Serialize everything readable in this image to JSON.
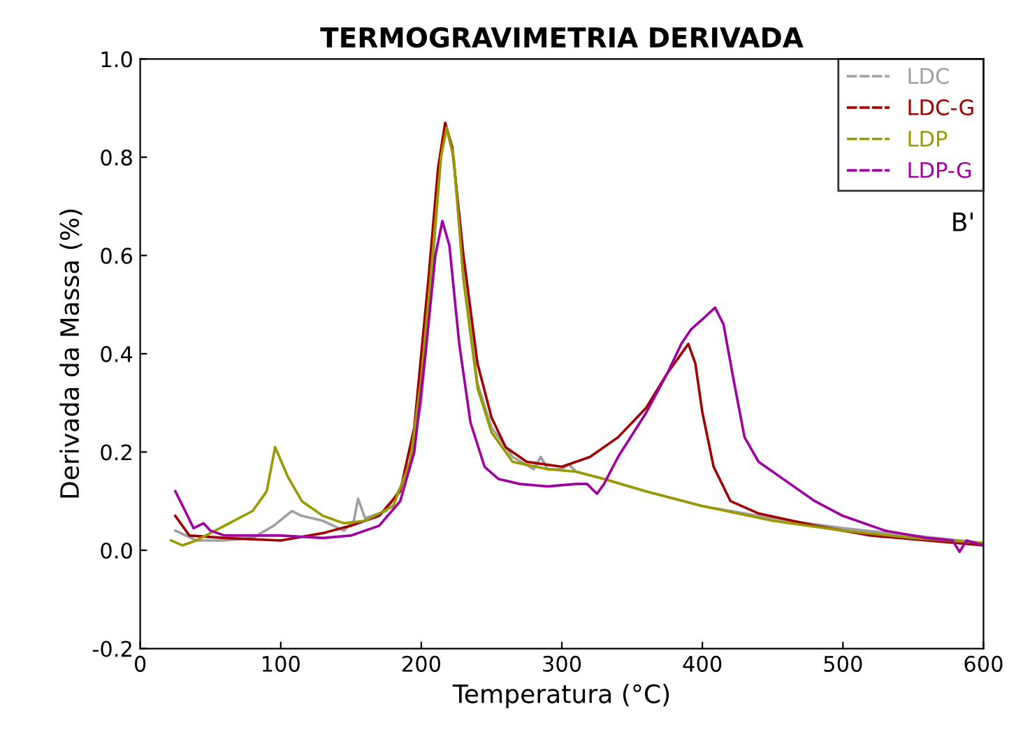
{
  "chart_data": {
    "type": "line",
    "title": "TERMOGRAVIMETRIA DERIVADA",
    "xlabel": "Temperatura (°C)",
    "ylabel": "Derivada da Massa (%)",
    "annotations": [
      "B'"
    ],
    "xlim": [
      0,
      600
    ],
    "xticks": [
      0,
      100,
      200,
      300,
      400,
      500,
      600
    ],
    "ylim": [
      -0.2,
      1.0
    ],
    "yticks": [
      {
        "value": -0.2,
        "label": "-0.2"
      },
      {
        "value": 0.0,
        "label": "0.0"
      },
      {
        "value": 0.2,
        "label": "0.2"
      },
      {
        "value": 0.4,
        "label": "0.4"
      },
      {
        "value": 0.6,
        "label": "0.6"
      },
      {
        "value": 0.8,
        "label": "0.8"
      },
      {
        "value": 1.0,
        "label": "1.0"
      }
    ],
    "grid": false,
    "legend": "top right",
    "marker": "none",
    "line_style": "solid",
    "series": [
      {
        "name": "LDC",
        "color": "#a0a0a0",
        "x": [
          25,
          40,
          60,
          80,
          95,
          108,
          115,
          130,
          145,
          152,
          155,
          160,
          175,
          190,
          200,
          208,
          214,
          218,
          223,
          230,
          240,
          250,
          265,
          280,
          285,
          290,
          300,
          305,
          310,
          330,
          360,
          400,
          450,
          500,
          550,
          600
        ],
        "values": [
          0.04,
          0.02,
          0.02,
          0.025,
          0.05,
          0.08,
          0.07,
          0.06,
          0.04,
          0.06,
          0.105,
          0.065,
          0.08,
          0.15,
          0.3,
          0.58,
          0.8,
          0.86,
          0.8,
          0.56,
          0.34,
          0.25,
          0.19,
          0.165,
          0.19,
          0.165,
          0.165,
          0.175,
          0.16,
          0.145,
          0.12,
          0.09,
          0.065,
          0.045,
          0.03,
          0.015
        ]
      },
      {
        "name": "LDC-G",
        "color": "#a00000",
        "x": [
          25,
          35,
          60,
          100,
          130,
          150,
          170,
          185,
          195,
          205,
          212,
          217,
          222,
          230,
          240,
          250,
          260,
          275,
          300,
          320,
          340,
          360,
          375,
          390,
          395,
          400,
          408,
          420,
          440,
          480,
          520,
          560,
          600
        ],
        "values": [
          0.07,
          0.03,
          0.025,
          0.02,
          0.035,
          0.05,
          0.07,
          0.12,
          0.25,
          0.55,
          0.78,
          0.87,
          0.82,
          0.6,
          0.38,
          0.27,
          0.21,
          0.18,
          0.17,
          0.19,
          0.23,
          0.29,
          0.36,
          0.42,
          0.38,
          0.28,
          0.17,
          0.1,
          0.075,
          0.05,
          0.03,
          0.02,
          0.01
        ]
      },
      {
        "name": "LDP",
        "color": "#9a9a00",
        "x": [
          22,
          30,
          40,
          60,
          80,
          90,
          96,
          105,
          115,
          130,
          145,
          160,
          180,
          192,
          200,
          208,
          214,
          218,
          223,
          230,
          240,
          250,
          265,
          290,
          310,
          330,
          360,
          400,
          450,
          500,
          550,
          600
        ],
        "values": [
          0.02,
          0.01,
          0.02,
          0.05,
          0.08,
          0.12,
          0.21,
          0.15,
          0.1,
          0.07,
          0.055,
          0.06,
          0.09,
          0.18,
          0.35,
          0.6,
          0.8,
          0.86,
          0.8,
          0.55,
          0.33,
          0.24,
          0.18,
          0.165,
          0.16,
          0.145,
          0.12,
          0.09,
          0.06,
          0.04,
          0.025,
          0.015
        ]
      },
      {
        "name": "LDP-G",
        "color": "#a000a0",
        "x": [
          25,
          32,
          38,
          45,
          50,
          60,
          100,
          130,
          150,
          170,
          185,
          195,
          203,
          210,
          215,
          220,
          227,
          235,
          245,
          255,
          270,
          290,
          310,
          318,
          325,
          330,
          340,
          360,
          375,
          385,
          392,
          400,
          409,
          415,
          422,
          430,
          440,
          460,
          480,
          500,
          530,
          560,
          578,
          583,
          588,
          600
        ],
        "values": [
          0.12,
          0.08,
          0.045,
          0.055,
          0.04,
          0.03,
          0.03,
          0.025,
          0.03,
          0.05,
          0.1,
          0.2,
          0.4,
          0.6,
          0.67,
          0.62,
          0.42,
          0.26,
          0.17,
          0.145,
          0.135,
          0.13,
          0.135,
          0.135,
          0.115,
          0.135,
          0.19,
          0.28,
          0.36,
          0.42,
          0.45,
          0.47,
          0.494,
          0.46,
          0.35,
          0.23,
          0.18,
          0.14,
          0.1,
          0.07,
          0.04,
          0.025,
          0.02,
          -0.003,
          0.02,
          0.01
        ]
      }
    ]
  }
}
